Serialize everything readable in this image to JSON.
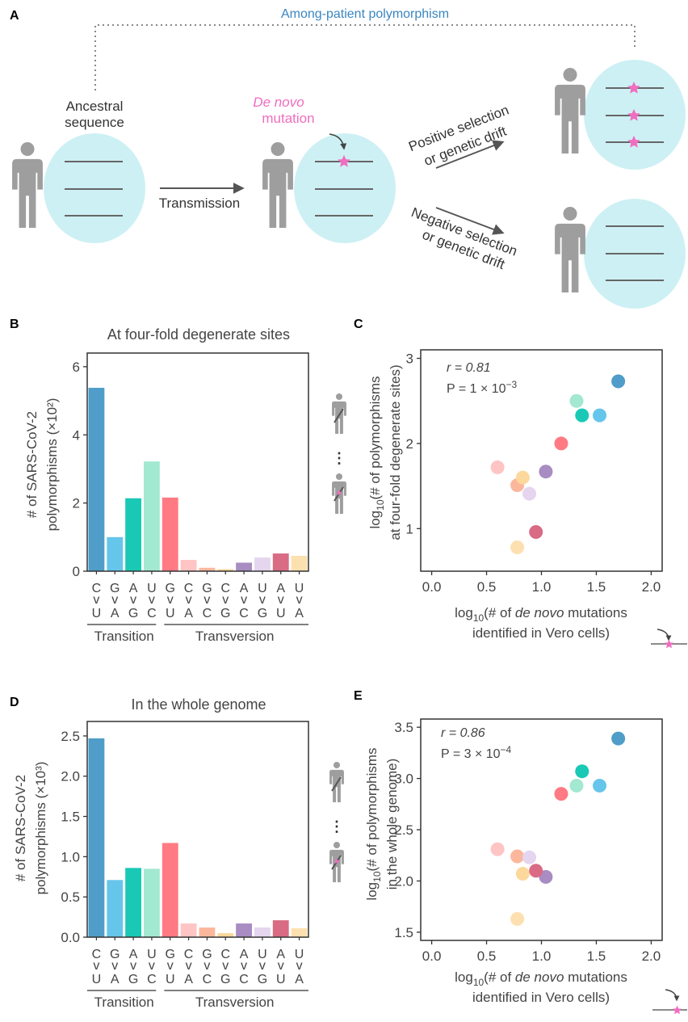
{
  "panel_a": {
    "label": "A",
    "among_patient": "Among-patient polymorphism",
    "ancestral_line1": "Ancestral",
    "ancestral_line2": "sequence",
    "de_novo_line1": "De novo",
    "de_novo_line2": "mutation",
    "transmission": "Transmission",
    "pos_line1": "Positive selection",
    "pos_line2": "or genetic drift",
    "neg_line1": "Negative selection",
    "neg_line2": "or genetic drift",
    "colors": {
      "cell": "#cdf0f4",
      "person": "#9e9e9e",
      "star": "#f06dbf",
      "accent_text": "#3a86c0"
    }
  },
  "labels": {
    "top": [
      "C",
      "G",
      "A",
      "U",
      "G",
      "C",
      "G",
      "C",
      "A",
      "U",
      "A",
      "U"
    ],
    "bottom": [
      "U",
      "A",
      "G",
      "C",
      "U",
      "A",
      "C",
      "G",
      "C",
      "G",
      "U",
      "A"
    ],
    "arrow": "v",
    "transition": "Transition",
    "transversion": "Transversion"
  },
  "colors": [
    "#4f9dc8",
    "#66c5ea",
    "#19c9b6",
    "#a3e8d0",
    "#ff7a82",
    "#ffc4c4",
    "#fbb79c",
    "#fdd89c",
    "#a88cc2",
    "#e5d5ee",
    "#d96b84",
    "#fde0b0"
  ],
  "chart_data": [
    {
      "id": "B",
      "type": "bar",
      "panel_label": "B",
      "title": "At four-fold degenerate sites",
      "ylabel_line1": "# of SARS-CoV-2",
      "ylabel_line2": "polymorphisms (×10²)",
      "categories": [
        "C>U",
        "G>A",
        "A>G",
        "U>C",
        "G>U",
        "C>A",
        "G>C",
        "C>G",
        "A>C",
        "U>G",
        "A>U",
        "U>A"
      ],
      "values": [
        5.38,
        1.0,
        2.14,
        3.22,
        2.16,
        0.33,
        0.1,
        0.06,
        0.25,
        0.4,
        0.52,
        0.45
      ],
      "ylim": [
        0,
        6.4
      ],
      "yticks": [
        "0",
        "2",
        "4",
        "6"
      ]
    },
    {
      "id": "C",
      "type": "scatter",
      "panel_label": "C",
      "xlabel_line1_a": "log",
      "xlabel_sub": "10",
      "xlabel_line1_b": "(# of ",
      "xlabel_line1_c": "de novo",
      "xlabel_line1_d": " mutations",
      "xlabel_line2": "identified in Vero cells)",
      "ylabel_line1_a": "log",
      "ylabel_sub": "10",
      "ylabel_line1_b": "(# of polymorphisms",
      "ylabel_line2": "at four-fold degenerate sites)",
      "r_text": "r = 0.81",
      "p_text": "P = 1 × 10",
      "p_exp": "−3",
      "xlim": [
        -0.1,
        2.1
      ],
      "ylim": [
        0.5,
        3.1
      ],
      "xticks": [
        "0.0",
        "0.5",
        "1.0",
        "1.5",
        "2.0"
      ],
      "yticks": [
        "1",
        "2",
        "3"
      ],
      "x": [
        1.7,
        1.53,
        1.37,
        1.32,
        1.18,
        0.6,
        0.78,
        0.83,
        1.04,
        0.89,
        0.95,
        0.78
      ],
      "y": [
        2.73,
        2.33,
        2.33,
        2.5,
        2.0,
        1.72,
        1.51,
        1.6,
        1.67,
        1.41,
        0.96,
        0.78
      ]
    },
    {
      "id": "D",
      "type": "bar",
      "panel_label": "D",
      "title": "In the whole genome",
      "ylabel_line1": "# of SARS-CoV-2",
      "ylabel_line2": "polymorphisms (×10³)",
      "categories": [
        "C>U",
        "G>A",
        "A>G",
        "U>C",
        "G>U",
        "C>A",
        "G>C",
        "C>G",
        "A>C",
        "U>G",
        "A>U",
        "U>A"
      ],
      "values": [
        2.47,
        0.71,
        0.86,
        0.85,
        1.17,
        0.17,
        0.12,
        0.05,
        0.17,
        0.12,
        0.21,
        0.11
      ],
      "ylim": [
        0,
        2.68
      ],
      "yticks": [
        "0.0",
        "0.5",
        "1.0",
        "1.5",
        "2.0",
        "2.5"
      ]
    },
    {
      "id": "E",
      "type": "scatter",
      "panel_label": "E",
      "xlabel_line1_a": "log",
      "xlabel_sub": "10",
      "xlabel_line1_b": "(# of ",
      "xlabel_line1_c": "de novo",
      "xlabel_line1_d": " mutations",
      "xlabel_line2": "identified in Vero cells)",
      "ylabel_line1_a": "log",
      "ylabel_sub": "10",
      "ylabel_line1_b": "(# of polymorphisms",
      "ylabel_line2": "in the whole genome)",
      "r_text": "r = 0.86",
      "p_text": "P = 3 × 10",
      "p_exp": "−4",
      "xlim": [
        -0.1,
        2.1
      ],
      "ylim": [
        1.42,
        3.58
      ],
      "xticks": [
        "0.0",
        "0.5",
        "1.0",
        "1.5",
        "2.0"
      ],
      "yticks": [
        "1.5",
        "2.0",
        "2.5",
        "3.0",
        "3.5"
      ],
      "x": [
        1.7,
        1.53,
        1.37,
        1.32,
        1.18,
        0.6,
        0.78,
        0.83,
        1.04,
        0.89,
        0.95,
        0.78
      ],
      "y": [
        3.39,
        2.93,
        3.07,
        2.93,
        2.85,
        2.31,
        2.24,
        2.07,
        2.04,
        2.23,
        2.1,
        1.63
      ]
    }
  ]
}
